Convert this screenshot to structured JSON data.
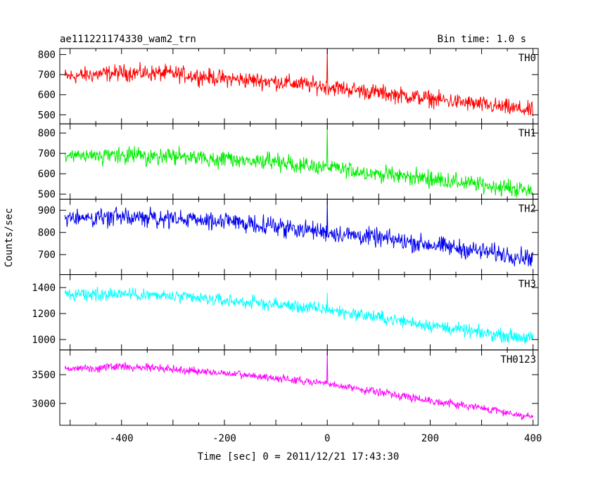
{
  "chart_data": {
    "type": "line",
    "title": "ae111221174330_wam2_trn",
    "subtitle": "Bin time: 1.0 s",
    "xlabel": "Time [sec] 0 = 2011/12/21 17:43:30",
    "ylabel": "Counts/sec",
    "xlim": [
      -520,
      410
    ],
    "x_ticks": [
      -400,
      -200,
      0,
      200,
      400
    ],
    "bin_time_s": 1.0,
    "panels": [
      {
        "name": "TH0",
        "color": "#ff0000",
        "ylim": [
          455,
          830
        ],
        "y_ticks": [
          500,
          600,
          700,
          800
        ],
        "x_knots": [
          -510,
          -400,
          -300,
          -200,
          -100,
          0,
          100,
          200,
          300,
          400
        ],
        "y_knots": [
          690,
          710,
          705,
          680,
          665,
          640,
          610,
          580,
          550,
          520
        ],
        "noise": 45,
        "spike_x": 0,
        "spike_peak": 830
      },
      {
        "name": "TH1",
        "color": "#00ee00",
        "ylim": [
          475,
          845
        ],
        "y_ticks": [
          500,
          600,
          700,
          800
        ],
        "x_knots": [
          -510,
          -400,
          -300,
          -200,
          -100,
          0,
          100,
          200,
          300,
          400
        ],
        "y_knots": [
          680,
          690,
          685,
          670,
          655,
          630,
          600,
          575,
          545,
          515
        ],
        "noise": 45,
        "spike_x": 0,
        "spike_peak": 840
      },
      {
        "name": "TH2",
        "color": "#0000ee",
        "ylim": [
          610,
          950
        ],
        "y_ticks": [
          700,
          800,
          900
        ],
        "x_knots": [
          -510,
          -400,
          -300,
          -200,
          -100,
          0,
          100,
          200,
          300,
          400
        ],
        "y_knots": [
          865,
          870,
          860,
          850,
          830,
          800,
          775,
          745,
          715,
          685
        ],
        "noise": 45,
        "spike_x": 0,
        "spike_peak": 950
      },
      {
        "name": "TH3",
        "color": "#00ffff",
        "ylim": [
          920,
          1500
        ],
        "y_ticks": [
          1000,
          1200,
          1400
        ],
        "x_knots": [
          -510,
          -400,
          -300,
          -200,
          -100,
          0,
          100,
          200,
          300,
          400
        ],
        "y_knots": [
          1340,
          1355,
          1330,
          1300,
          1270,
          1230,
          1170,
          1110,
          1050,
          1010
        ],
        "noise": 55,
        "spike_x": 0,
        "spike_peak": 1360
      },
      {
        "name": "TH0123",
        "color": "#ff00ff",
        "ylim": [
          2620,
          3930
        ],
        "y_ticks": [
          3000,
          3500
        ],
        "x_knots": [
          -510,
          -400,
          -300,
          -200,
          -100,
          0,
          100,
          200,
          300,
          400
        ],
        "y_knots": [
          3600,
          3640,
          3600,
          3520,
          3440,
          3340,
          3200,
          3050,
          2920,
          2760
        ],
        "noise": 75,
        "spike_x": 0,
        "spike_peak": 3920
      }
    ]
  }
}
